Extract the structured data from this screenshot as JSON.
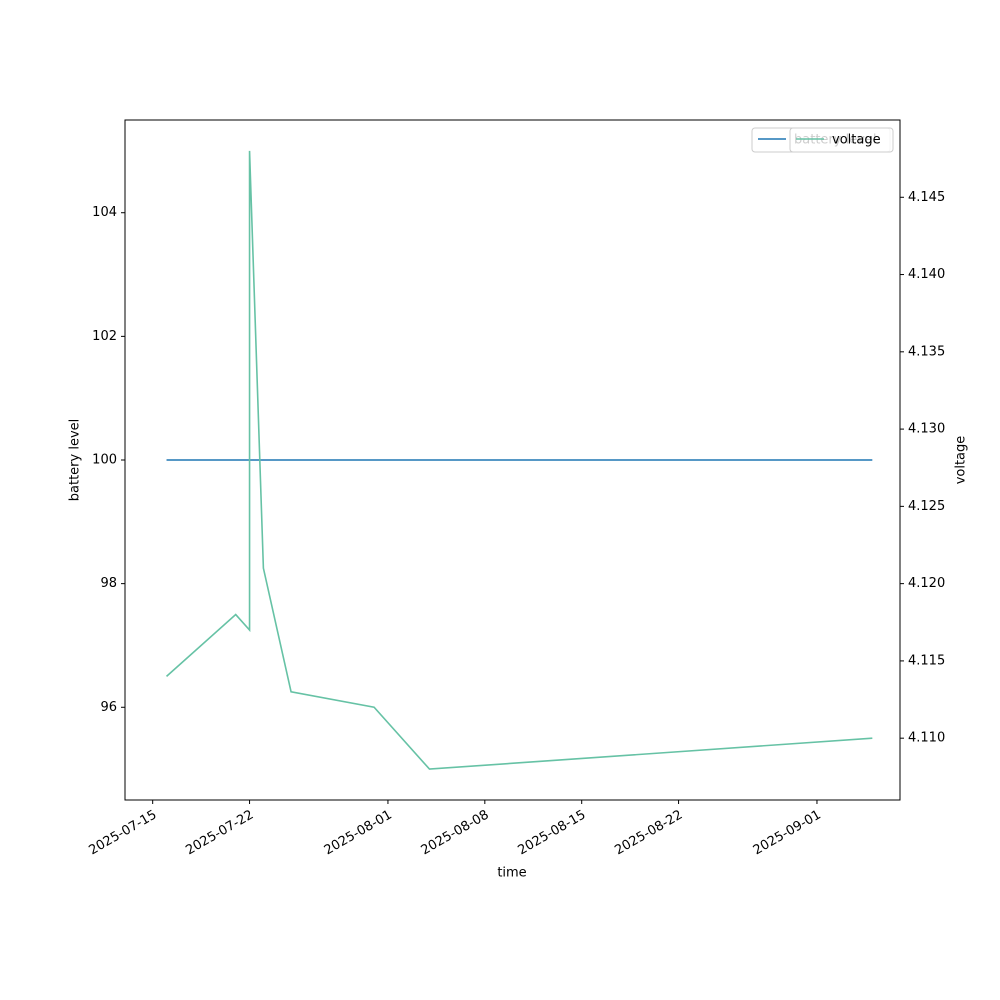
{
  "chart_data": {
    "type": "line",
    "xlabel": "time",
    "ylabel": "battery level",
    "y2label": "voltage",
    "x": [
      "2025-07-16",
      "2025-07-21",
      "2025-07-22",
      "2025-07-22",
      "2025-07-23",
      "2025-07-25",
      "2025-07-31",
      "2025-08-04",
      "2025-09-05"
    ],
    "series": [
      {
        "name": "battery level",
        "color": "#1f77b4",
        "values": [
          100,
          100,
          100,
          100,
          100,
          100,
          100,
          100,
          100
        ]
      },
      {
        "name": "voltage",
        "color": "#66c2a5",
        "axis": "y2",
        "values": [
          4.114,
          4.118,
          4.117,
          4.148,
          4.121,
          4.113,
          4.112,
          4.108,
          4.11
        ]
      }
    ],
    "xlim": [
      "2025-07-13",
      "2025-09-07"
    ],
    "xticks": [
      "2025-07-15",
      "2025-07-22",
      "2025-08-01",
      "2025-08-08",
      "2025-08-15",
      "2025-08-22",
      "2025-09-01"
    ],
    "ylim": [
      94.5,
      105.5
    ],
    "yticks": [
      96,
      98,
      100,
      102,
      104
    ],
    "y2lim": [
      4.106,
      4.15
    ],
    "y2ticks": [
      {
        "value": 4.11,
        "label": "4.110"
      },
      4.115,
      {
        "value": 4.12,
        "label": "4.120"
      },
      4.125,
      {
        "value": 4.13,
        "label": "4.130"
      },
      4.135,
      {
        "value": 4.14,
        "label": "4.140"
      },
      4.145
    ],
    "legend": "upper right",
    "grid": false
  }
}
